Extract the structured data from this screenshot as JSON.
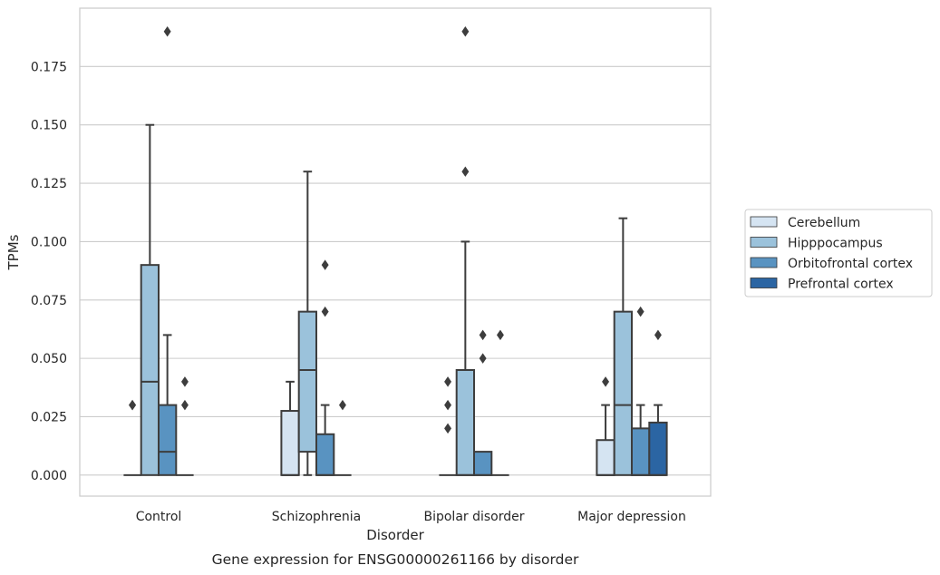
{
  "caption": "Gene expression for ENSG00000261166 by disorder",
  "chart_data": {
    "type": "box",
    "xlabel": "Disorder",
    "ylabel": "TPMs",
    "ylim": [
      -0.009,
      0.2
    ],
    "yticks": [
      0.0,
      0.025,
      0.05,
      0.075,
      0.1,
      0.125,
      0.15,
      0.175
    ],
    "ytick_labels": [
      "0.000",
      "0.025",
      "0.050",
      "0.075",
      "0.100",
      "0.125",
      "0.150",
      "0.175"
    ],
    "grid": "horizontal",
    "legend_placement": "outside-right",
    "categories": [
      "Control",
      "Schizophrenia",
      "Bipolar disorder",
      "Major depression"
    ],
    "series": [
      {
        "name": "Cerebellum",
        "color": "#d5e4f2",
        "boxes": [
          {
            "q1": 0.0,
            "median": 0.0,
            "q3": 0.0,
            "whisker_low": 0.0,
            "whisker_high": 0.0,
            "outliers": [
              0.03,
              0.03
            ]
          },
          {
            "q1": 0.0,
            "median": 0.0,
            "q3": 0.0275,
            "whisker_low": 0.0,
            "whisker_high": 0.04,
            "outliers": []
          },
          {
            "q1": 0.0,
            "median": 0.0,
            "q3": 0.0,
            "whisker_low": 0.0,
            "whisker_high": 0.0,
            "outliers": [
              0.04,
              0.03,
              0.02
            ]
          },
          {
            "q1": 0.0,
            "median": 0.0,
            "q3": 0.015,
            "whisker_low": 0.0,
            "whisker_high": 0.03,
            "outliers": [
              0.04
            ]
          }
        ]
      },
      {
        "name": "Hipppocampus",
        "color": "#9bc2db",
        "boxes": [
          {
            "q1": 0.0,
            "median": 0.04,
            "q3": 0.09,
            "whisker_low": 0.0,
            "whisker_high": 0.15,
            "outliers": []
          },
          {
            "q1": 0.01,
            "median": 0.045,
            "q3": 0.07,
            "whisker_low": 0.0,
            "whisker_high": 0.13,
            "outliers": []
          },
          {
            "q1": 0.0,
            "median": 0.0,
            "q3": 0.045,
            "whisker_low": 0.0,
            "whisker_high": 0.1,
            "outliers": [
              0.13,
              0.19
            ]
          },
          {
            "q1": 0.0,
            "median": 0.03,
            "q3": 0.07,
            "whisker_low": 0.0,
            "whisker_high": 0.11,
            "outliers": []
          }
        ]
      },
      {
        "name": "Orbitofrontal cortex",
        "color": "#5993c1",
        "boxes": [
          {
            "q1": 0.0,
            "median": 0.01,
            "q3": 0.03,
            "whisker_low": 0.0,
            "whisker_high": 0.06,
            "outliers": [
              0.19
            ]
          },
          {
            "q1": 0.0,
            "median": 0.0,
            "q3": 0.0175,
            "whisker_low": 0.0,
            "whisker_high": 0.03,
            "outliers": [
              0.07,
              0.09
            ]
          },
          {
            "q1": 0.0,
            "median": 0.0,
            "q3": 0.01,
            "whisker_low": 0.0,
            "whisker_high": 0.01,
            "outliers": [
              0.05,
              0.06
            ]
          },
          {
            "q1": 0.0,
            "median": 0.0,
            "q3": 0.02,
            "whisker_low": 0.0,
            "whisker_high": 0.03,
            "outliers": [
              0.07
            ]
          }
        ]
      },
      {
        "name": "Prefrontal cortex",
        "color": "#2b65a3",
        "boxes": [
          {
            "q1": 0.0,
            "median": 0.0,
            "q3": 0.0,
            "whisker_low": 0.0,
            "whisker_high": 0.0,
            "outliers": [
              0.03,
              0.04
            ]
          },
          {
            "q1": 0.0,
            "median": 0.0,
            "q3": 0.0,
            "whisker_low": 0.0,
            "whisker_high": 0.0,
            "outliers": [
              0.03
            ]
          },
          {
            "q1": 0.0,
            "median": 0.0,
            "q3": 0.0,
            "whisker_low": 0.0,
            "whisker_high": 0.0,
            "outliers": [
              0.06
            ]
          },
          {
            "q1": 0.0,
            "median": 0.0,
            "q3": 0.0225,
            "whisker_low": 0.0,
            "whisker_high": 0.03,
            "outliers": [
              0.06
            ]
          }
        ]
      }
    ]
  }
}
